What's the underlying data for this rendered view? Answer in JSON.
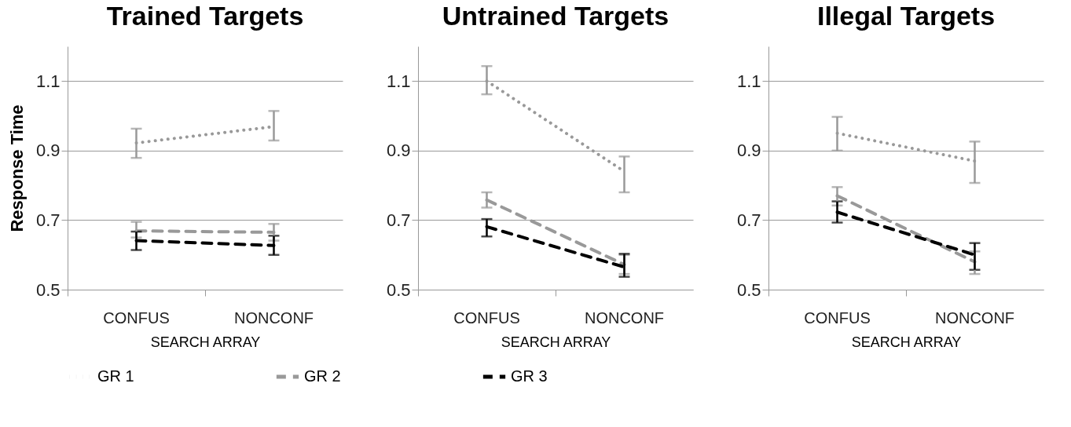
{
  "chart_data": [
    {
      "type": "line",
      "title": "Trained Targets",
      "xlabel": "SEARCH ARRAY",
      "ylabel": "Response Time",
      "categories": [
        "CONFUS",
        "NONCONF"
      ],
      "ylim": [
        0.5,
        1.2
      ],
      "yticks": [
        0.5,
        0.7,
        0.9,
        1.1
      ],
      "grid": "y",
      "legend": "bottom",
      "series": [
        {
          "name": "GR 1",
          "color": "#999999",
          "line_style": "dotted",
          "values": [
            0.922,
            0.969
          ],
          "errors": [
            [
              0.879,
              0.963
            ],
            [
              0.929,
              1.014
            ]
          ]
        },
        {
          "name": "GR 2",
          "color": "#999999",
          "line_style": "dashed",
          "values": [
            0.669,
            0.665
          ],
          "errors": [
            [
              0.65,
              0.695
            ],
            [
              0.641,
              0.689
            ]
          ]
        },
        {
          "name": "GR 3",
          "color": "#000000",
          "line_style": "dashed",
          "values": [
            0.641,
            0.627
          ],
          "errors": [
            [
              0.614,
              0.667
            ],
            [
              0.6,
              0.655
            ]
          ]
        }
      ]
    },
    {
      "type": "line",
      "title": "Untrained Targets",
      "xlabel": "SEARCH ARRAY",
      "categories": [
        "CONFUS",
        "NONCONF"
      ],
      "ylim": [
        0.5,
        1.2
      ],
      "yticks": [
        0.5,
        0.7,
        0.9,
        1.1
      ],
      "grid": "y",
      "legend": "bottom",
      "series": [
        {
          "name": "GR 1",
          "color": "#999999",
          "line_style": "dotted",
          "values": [
            1.1,
            0.84
          ],
          "errors": [
            [
              1.062,
              1.143
            ],
            [
              0.78,
              0.883
            ]
          ]
        },
        {
          "name": "GR 2",
          "color": "#999999",
          "line_style": "dashed",
          "values": [
            0.758,
            0.572
          ],
          "errors": [
            [
              0.736,
              0.78
            ],
            [
              0.545,
              0.6
            ]
          ]
        },
        {
          "name": "GR 3",
          "color": "#000000",
          "line_style": "dashed",
          "values": [
            0.681,
            0.565
          ],
          "errors": [
            [
              0.653,
              0.703
            ],
            [
              0.537,
              0.603
            ]
          ]
        }
      ]
    },
    {
      "type": "line",
      "title": "Illegal Targets",
      "xlabel": "SEARCH ARRAY",
      "categories": [
        "CONFUS",
        "NONCONF"
      ],
      "ylim": [
        0.5,
        1.2
      ],
      "yticks": [
        0.5,
        0.7,
        0.9,
        1.1
      ],
      "grid": "y",
      "legend": "bottom",
      "series": [
        {
          "name": "GR 1",
          "color": "#999999",
          "line_style": "dotted",
          "values": [
            0.95,
            0.87
          ],
          "errors": [
            [
              0.9,
              0.997
            ],
            [
              0.807,
              0.926
            ]
          ]
        },
        {
          "name": "GR 2",
          "color": "#999999",
          "line_style": "dashed",
          "values": [
            0.77,
            0.58
          ],
          "errors": [
            [
              0.742,
              0.795
            ],
            [
              0.545,
              0.61
            ]
          ]
        },
        {
          "name": "GR 3",
          "color": "#000000",
          "line_style": "dashed",
          "values": [
            0.723,
            0.6
          ],
          "errors": [
            [
              0.693,
              0.754
            ],
            [
              0.557,
              0.634
            ]
          ]
        }
      ]
    }
  ]
}
